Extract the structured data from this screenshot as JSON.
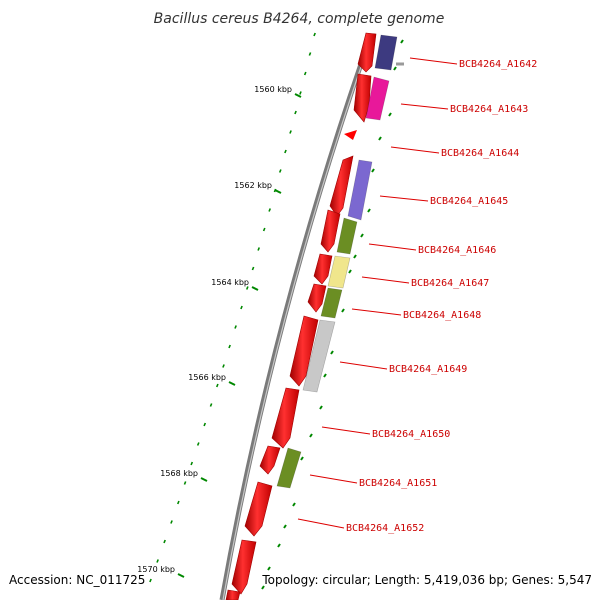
{
  "title": "Bacillus cereus B4264, complete genome",
  "colors": {
    "forward_strand": "#ff0000",
    "labels": "#dd0000",
    "ticks": "#008800",
    "backbone": "#7a7a7a"
  },
  "scale_labels": [
    "1560 kbp",
    "1562 kbp",
    "1564 kbp",
    "1566 kbp",
    "1568 kbp",
    "1570 kbp"
  ],
  "genes": [
    {
      "label": "BCB4264_A1642",
      "color": "#3d3a80"
    },
    {
      "label": "BCB4264_A1643",
      "color": "#e8189a"
    },
    {
      "label": "BCB4264_A1644",
      "color": "#ff0000"
    },
    {
      "label": "BCB4264_A1645",
      "color": "#7b68d0"
    },
    {
      "label": "BCB4264_A1646",
      "color": "#6b8e23"
    },
    {
      "label": "BCB4264_A1647",
      "color": "#f0e68c"
    },
    {
      "label": "BCB4264_A1648",
      "color": "#6b8e23"
    },
    {
      "label": "BCB4264_A1649",
      "color": "#c8c8c8"
    },
    {
      "label": "BCB4264_A1650",
      "color": "#ff0000"
    },
    {
      "label": "BCB4264_A1651",
      "color": "#6b8e23"
    },
    {
      "label": "BCB4264_A1652",
      "color": "#ff0000"
    }
  ],
  "footer": {
    "accession": "Accession: NC_011725",
    "topology": "Topology: circular; Length: 5,419,036 bp; Genes: 5,547"
  }
}
